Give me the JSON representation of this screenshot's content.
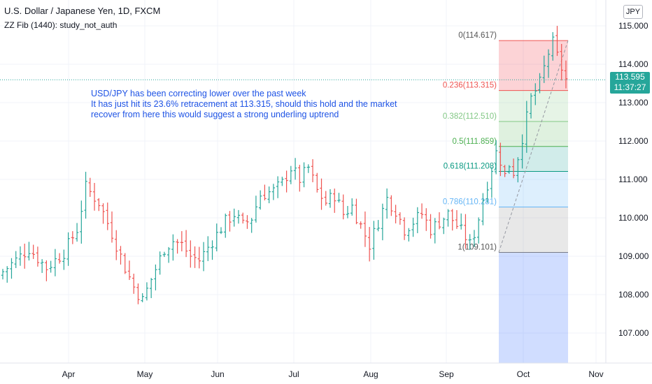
{
  "header": {
    "title": "U.S. Dollar / Japanese Yen, 1D, FXCM",
    "study": "ZZ Fib (1440): study_not_auth"
  },
  "currency_button": "JPY",
  "annotation": [
    "USD/JPY has been correcting lower over the past week",
    "It has just hit its 23.6% retracement at 113.315, should this hold and the market",
    "recover from here this would suggest a strong underling uptrend"
  ],
  "last_price": {
    "value": "113.595",
    "countdown": "11:37:27",
    "color": "#26a69a"
  },
  "chart_data": {
    "type": "bar",
    "style": "ohlc",
    "ylim": [
      106.2,
      115.35
    ],
    "y_ticks": [
      "107.000",
      "108.000",
      "109.000",
      "110.000",
      "111.000",
      "112.000",
      "113.000",
      "114.000",
      "115.000"
    ],
    "x_ticks": [
      "Apr",
      "May",
      "Jun",
      "Jul",
      "Aug",
      "Sep",
      "Oct",
      "Nov"
    ],
    "up_color": "#26a69a",
    "down_color": "#ef5350",
    "close_path": [
      [
        0,
        108.6
      ],
      [
        6,
        109.2
      ],
      [
        10,
        108.7
      ],
      [
        14,
        109.1
      ],
      [
        17,
        109.7
      ],
      [
        19,
        110.8
      ],
      [
        22,
        110.4
      ],
      [
        25,
        109.6
      ],
      [
        28,
        108.7
      ],
      [
        30,
        108.2
      ],
      [
        32,
        107.85
      ],
      [
        34,
        108.4
      ],
      [
        37,
        109.2
      ],
      [
        39,
        109.4
      ],
      [
        41,
        109.3
      ],
      [
        43,
        109.0
      ],
      [
        45,
        108.9
      ],
      [
        48,
        109.4
      ],
      [
        51,
        109.9
      ],
      [
        53,
        110.1
      ],
      [
        55,
        109.8
      ],
      [
        57,
        110.0
      ],
      [
        59,
        110.6
      ],
      [
        62,
        110.7
      ],
      [
        64,
        110.9
      ],
      [
        66,
        111.3
      ],
      [
        68,
        111.0
      ],
      [
        70,
        111.3
      ],
      [
        72,
        110.7
      ],
      [
        74,
        110.4
      ],
      [
        76,
        110.6
      ],
      [
        78,
        110.1
      ],
      [
        80,
        110.3
      ],
      [
        82,
        109.8
      ],
      [
        84,
        109.3
      ],
      [
        86,
        109.9
      ],
      [
        88,
        110.5
      ],
      [
        90,
        110.2
      ],
      [
        92,
        109.7
      ],
      [
        94,
        109.9
      ],
      [
        96,
        110.1
      ],
      [
        98,
        109.7
      ],
      [
        100,
        109.9
      ],
      [
        102,
        110.1
      ],
      [
        104,
        109.8
      ],
      [
        106,
        109.5
      ],
      [
        107,
        109.3
      ],
      [
        108,
        109.6
      ],
      [
        109,
        110.0
      ],
      [
        110,
        110.5
      ],
      [
        111,
        110.9
      ],
      [
        112,
        111.3
      ],
      [
        113,
        111.7
      ],
      [
        114,
        111.5
      ],
      [
        115,
        111.1
      ],
      [
        116,
        111.4
      ],
      [
        117,
        111.2
      ],
      [
        118,
        111.6
      ],
      [
        119,
        112.1
      ],
      [
        120,
        112.6
      ],
      [
        121,
        113.1
      ],
      [
        122,
        113.3
      ],
      [
        123,
        113.5
      ],
      [
        124,
        113.9
      ],
      [
        125,
        114.3
      ],
      [
        126,
        114.55
      ],
      [
        127,
        114.2
      ],
      [
        128,
        113.9
      ],
      [
        129,
        113.6
      ]
    ],
    "fib_levels": [
      {
        "ratio": "0",
        "price": 114.617,
        "label": "0(114.617)",
        "line": "#ef5350",
        "fill": "rgba(242,54,69,0.22)",
        "text": "#555555"
      },
      {
        "ratio": "0.236",
        "price": 113.315,
        "label": "0.236(113.315)",
        "line": "#ef5350",
        "fill": "rgba(129,199,132,0.20)",
        "text": "#ef5350"
      },
      {
        "ratio": "0.382",
        "price": 112.51,
        "label": "0.382(112.510)",
        "line": "#81c784",
        "fill": "rgba(76,175,80,0.18)",
        "text": "#81c784"
      },
      {
        "ratio": "0.5",
        "price": 111.859,
        "label": "0.5(111.859)",
        "line": "#4caf50",
        "fill": "rgba(0,150,136,0.18)",
        "text": "#4caf50"
      },
      {
        "ratio": "0.618",
        "price": 111.208,
        "label": "0.618(111.208)",
        "line": "#089981",
        "fill": "rgba(100,181,246,0.22)",
        "text": "#089981"
      },
      {
        "ratio": "0.786",
        "price": 110.281,
        "label": "0.786(110.281)",
        "line": "#64b5f6",
        "fill": "rgba(150,150,150,0.22)",
        "text": "#64b5f6"
      },
      {
        "ratio": "1",
        "price": 109.101,
        "label": "1(109.101)",
        "line": "#787b86",
        "fill": "rgba(41,98,255,0.22)",
        "text": "#555555"
      }
    ]
  }
}
